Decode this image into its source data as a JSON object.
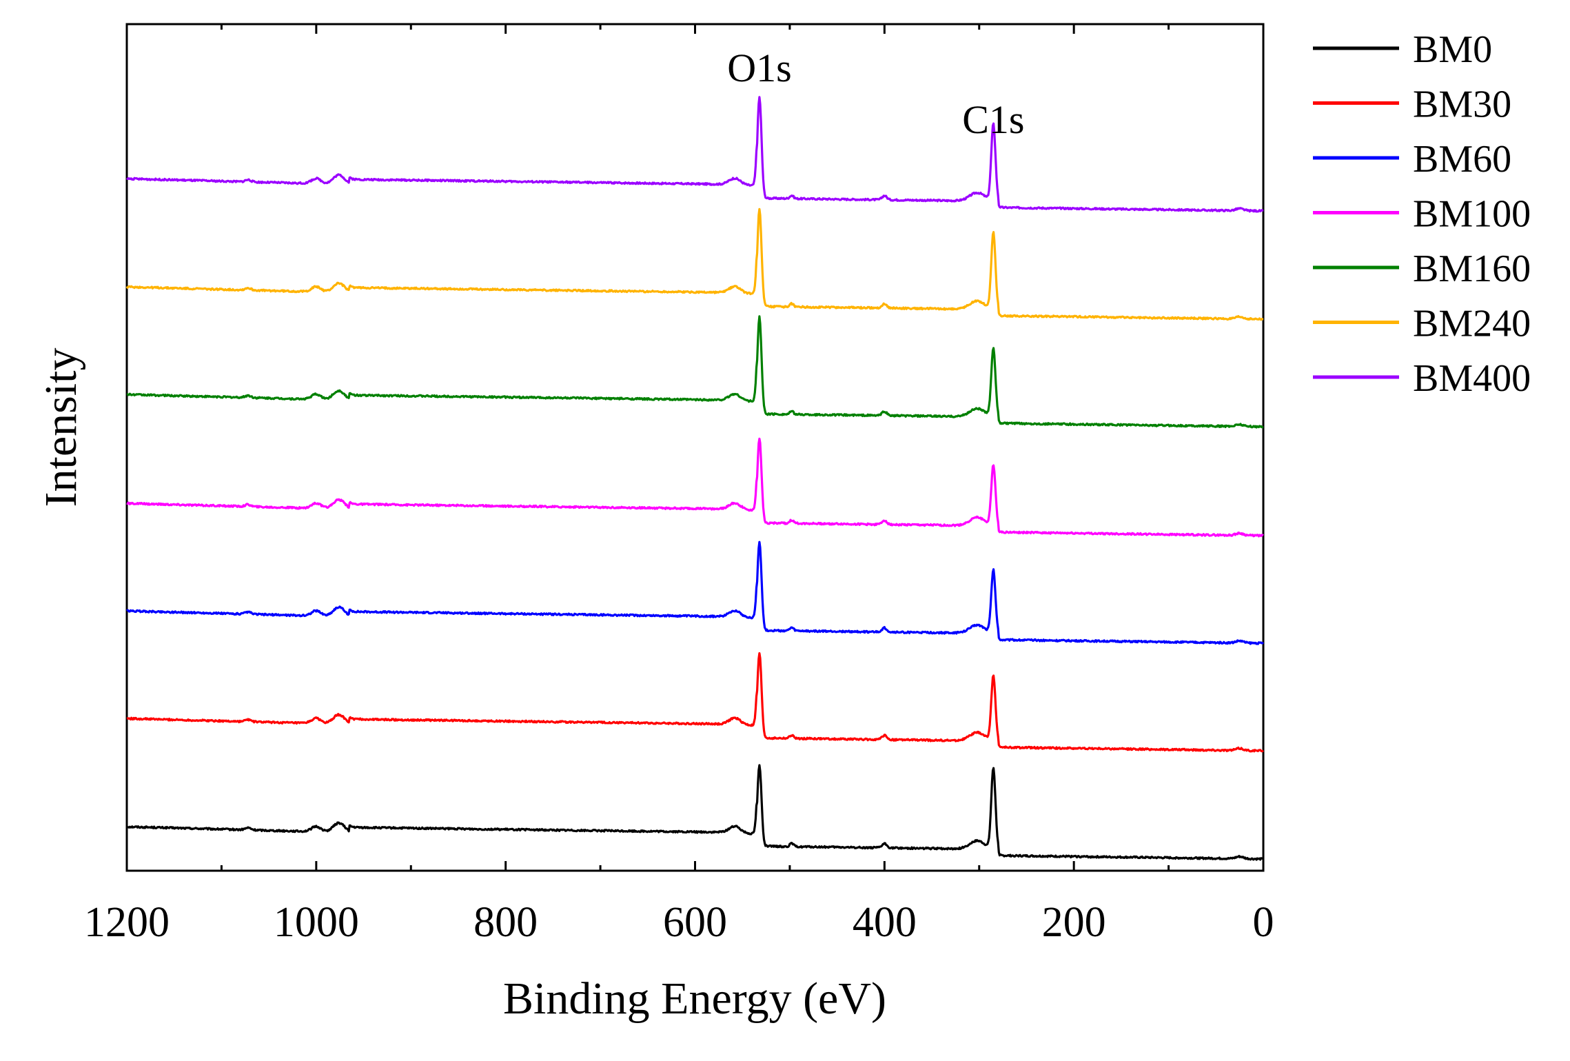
{
  "chart_data": {
    "type": "line",
    "title": "",
    "xlabel": "Binding Energy (eV)",
    "ylabel": "Intensity",
    "xlim": [
      1200,
      0
    ],
    "x_direction": "reversed",
    "x_ticks": [
      1200,
      1000,
      800,
      600,
      400,
      200,
      0
    ],
    "x_tick_labels": [
      "1200",
      "1000",
      "800",
      "600",
      "400",
      "200",
      "0"
    ],
    "y_ticks_shown": false,
    "grid": false,
    "legend_position": "right",
    "stacking": "vertically offset curves",
    "annotations": [
      {
        "text": "O1s",
        "x": 532
      },
      {
        "text": "C1s",
        "x": 285
      }
    ],
    "series": [
      {
        "name": "BM0",
        "color": "#000000",
        "offset": 0,
        "o1s_peak": 1.0,
        "c1s_peak": 1.0
      },
      {
        "name": "BM30",
        "color": "#ff0000",
        "offset": 1,
        "o1s_peak": 1.05,
        "c1s_peak": 0.8
      },
      {
        "name": "BM60",
        "color": "#0000ff",
        "offset": 2,
        "o1s_peak": 1.1,
        "c1s_peak": 0.78
      },
      {
        "name": "BM100",
        "color": "#ff00ff",
        "offset": 3,
        "o1s_peak": 1.05,
        "c1s_peak": 0.75
      },
      {
        "name": "BM160",
        "color": "#008000",
        "offset": 4,
        "o1s_peak": 1.2,
        "c1s_peak": 0.85
      },
      {
        "name": "BM240",
        "color": "#ffb300",
        "offset": 5,
        "o1s_peak": 1.2,
        "c1s_peak": 0.95
      },
      {
        "name": "BM400",
        "color": "#9b00ff",
        "offset": 6,
        "o1s_peak": 1.25,
        "c1s_peak": 0.95
      }
    ]
  }
}
